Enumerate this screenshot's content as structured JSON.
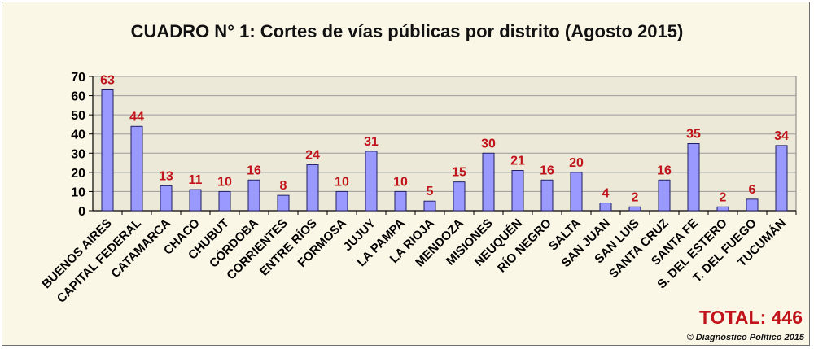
{
  "chart_data": {
    "type": "bar",
    "title": "CUADRO N° 1: Cortes de vías públicas por distrito (Agosto 2015)",
    "categories": [
      "BUENOS AIRES",
      "CAPITAL FEDERAL",
      "CATAMARCA",
      "CHACO",
      "CHUBUT",
      "CÓRDOBA",
      "CORRIENTES",
      "ENTRE RÍOS",
      "FORMOSA",
      "JUJUY",
      "LA PAMPA",
      "LA RIOJA",
      "MENDOZA",
      "MISIONES",
      "NEUQUÉN",
      "RÍO NEGRO",
      "SALTA",
      "SAN JUAN",
      "SAN LUIS",
      "SANTA CRUZ",
      "SANTA FE",
      "S. DEL ESTERO",
      "T. DEL FUEGO",
      "TUCUMÁN"
    ],
    "values": [
      63,
      44,
      13,
      11,
      10,
      16,
      8,
      24,
      10,
      31,
      10,
      5,
      15,
      30,
      21,
      16,
      20,
      4,
      2,
      16,
      35,
      2,
      6,
      34
    ],
    "ylim": [
      0,
      70
    ],
    "yticks": [
      0,
      10,
      20,
      30,
      40,
      50,
      60,
      70
    ],
    "grid": true,
    "legend": "none",
    "colors": {
      "bar": "#9999ff",
      "bar_stroke": "#202060",
      "plot_bg": "#ece9d8",
      "value_label": "#c0141a"
    }
  },
  "total_label": "TOTAL: 446",
  "credit": "© Diagnóstico Político 2015"
}
